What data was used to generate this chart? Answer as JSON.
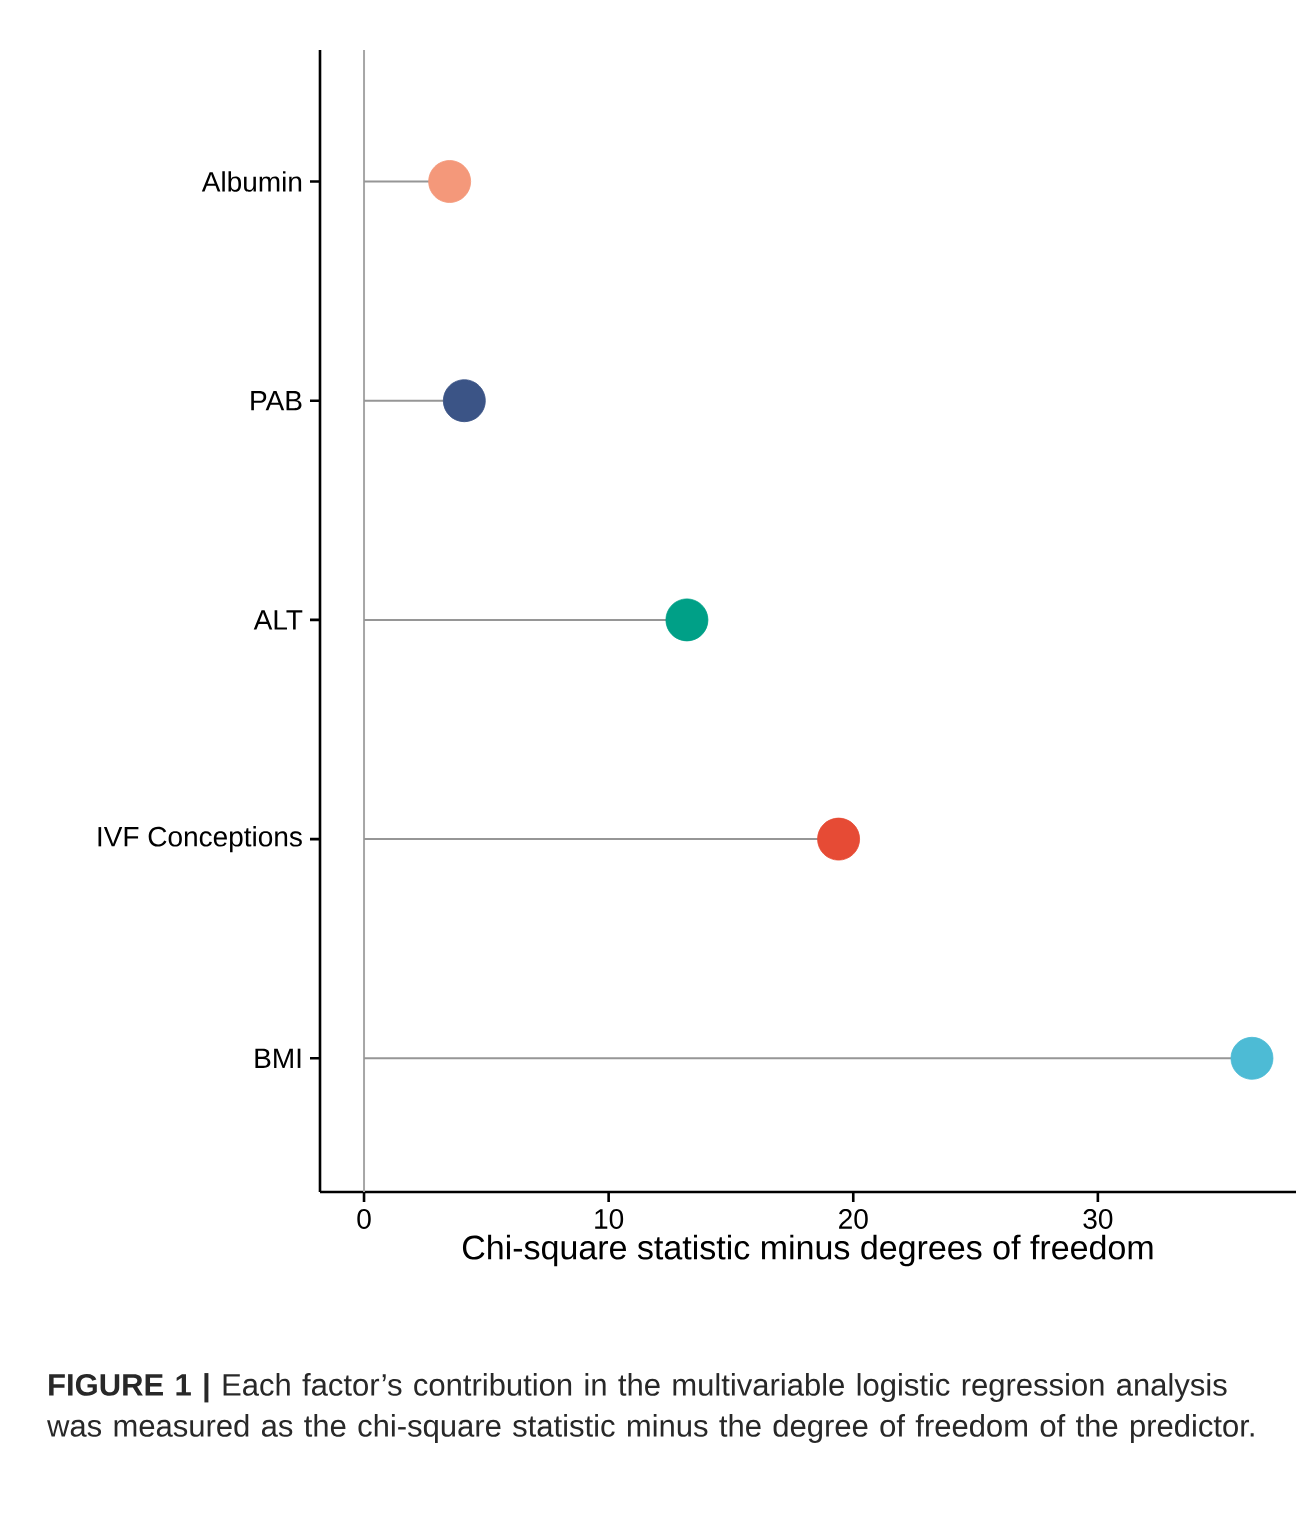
{
  "chart_data": {
    "type": "lollipop",
    "orientation": "horizontal",
    "categories": [
      "Albumin",
      "PAB",
      "ALT",
      "IVF Conceptions",
      "BMI"
    ],
    "values": [
      3.5,
      4.1,
      13.2,
      19.4,
      36.3
    ],
    "colors": [
      "#f4987a",
      "#3b5486",
      "#00a087",
      "#e64b35",
      "#4dbbd5"
    ],
    "xlim": [
      -1.8,
      38.1
    ],
    "xticks": [
      0,
      10,
      20,
      30
    ],
    "xlabel": "Chi-square statistic minus degrees of freedom",
    "ref_lines": [
      {
        "axis": "x",
        "value": 0,
        "color": "#a6a6a6"
      }
    ],
    "marker": "circle",
    "annotations": [
      "**FIGURE 1 |** Each factor’s contribution in the multivariable logistic regression analysis was measured as the chi-square statistic minus the degree of freedom of the predictor."
    ]
  }
}
